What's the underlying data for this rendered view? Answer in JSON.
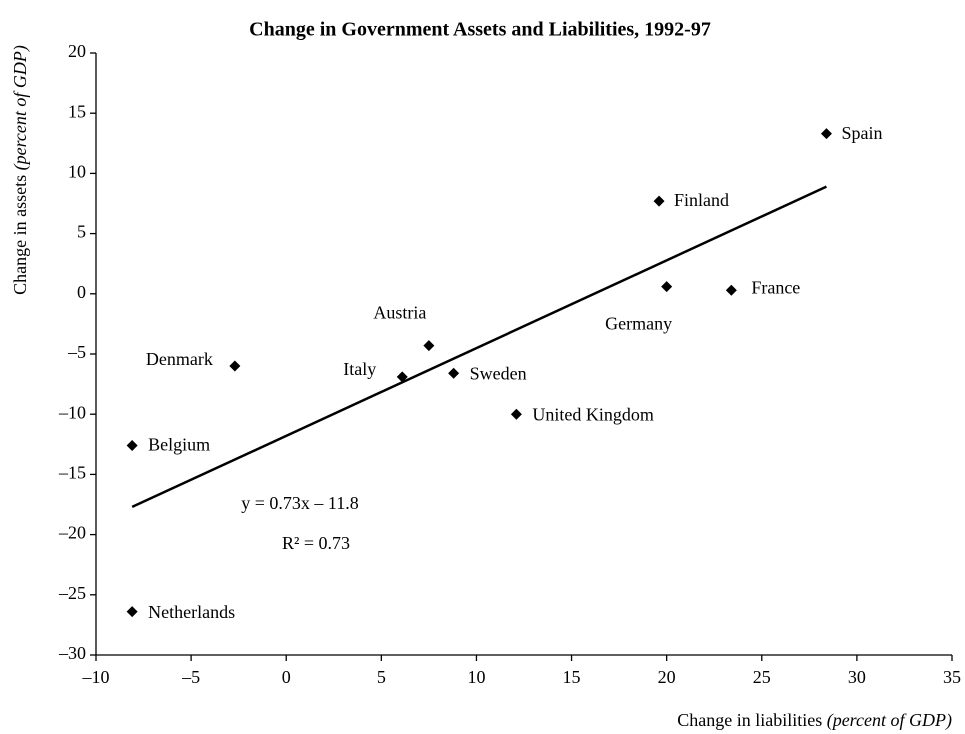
{
  "chart_data": {
    "type": "scatter",
    "title": "Change in Government Assets and Liabilities, 1992-97",
    "xlabel": {
      "text": "Change in liabilities",
      "note": "(percent of GDP)"
    },
    "ylabel": {
      "text": "Change in assets",
      "note": "(percent of GDP)"
    },
    "labels": [
      "Spain",
      "Finland",
      "Germany",
      "France",
      "Austria",
      "Denmark",
      "Italy",
      "Sweden",
      "United Kingdom",
      "Belgium",
      "Netherlands"
    ],
    "x": [
      28.4,
      19.6,
      20.0,
      23.4,
      7.5,
      -2.7,
      6.1,
      8.8,
      12.1,
      -8.1,
      -8.1
    ],
    "values": [
      13.3,
      7.7,
      0.6,
      0.3,
      -4.3,
      -6.0,
      -6.9,
      -6.6,
      -10.0,
      -12.6,
      -26.4
    ],
    "color": "#000000",
    "trendline": {
      "x": [
        -8.1,
        28.4
      ],
      "y": [
        -17.7,
        8.9
      ]
    },
    "annotations": [
      "y = 0.73x – 11.8",
      "R² = 0.73"
    ],
    "xlim": [
      -10,
      35
    ],
    "xticks": [
      {
        "value": -10,
        "label": "–10"
      },
      {
        "value": -5,
        "label": "–5"
      },
      0,
      5,
      10,
      15,
      20,
      25,
      30,
      35
    ],
    "ylim": [
      -30,
      20
    ],
    "yticks": [
      {
        "value": -30,
        "label": "–30"
      },
      {
        "value": -25,
        "label": "–25"
      },
      {
        "value": -20,
        "label": "–20"
      },
      {
        "value": -15,
        "label": "–15"
      },
      {
        "value": -10,
        "label": "–10"
      },
      {
        "value": -5,
        "label": "–5"
      },
      0,
      5,
      10,
      15,
      20
    ],
    "grid": false
  }
}
